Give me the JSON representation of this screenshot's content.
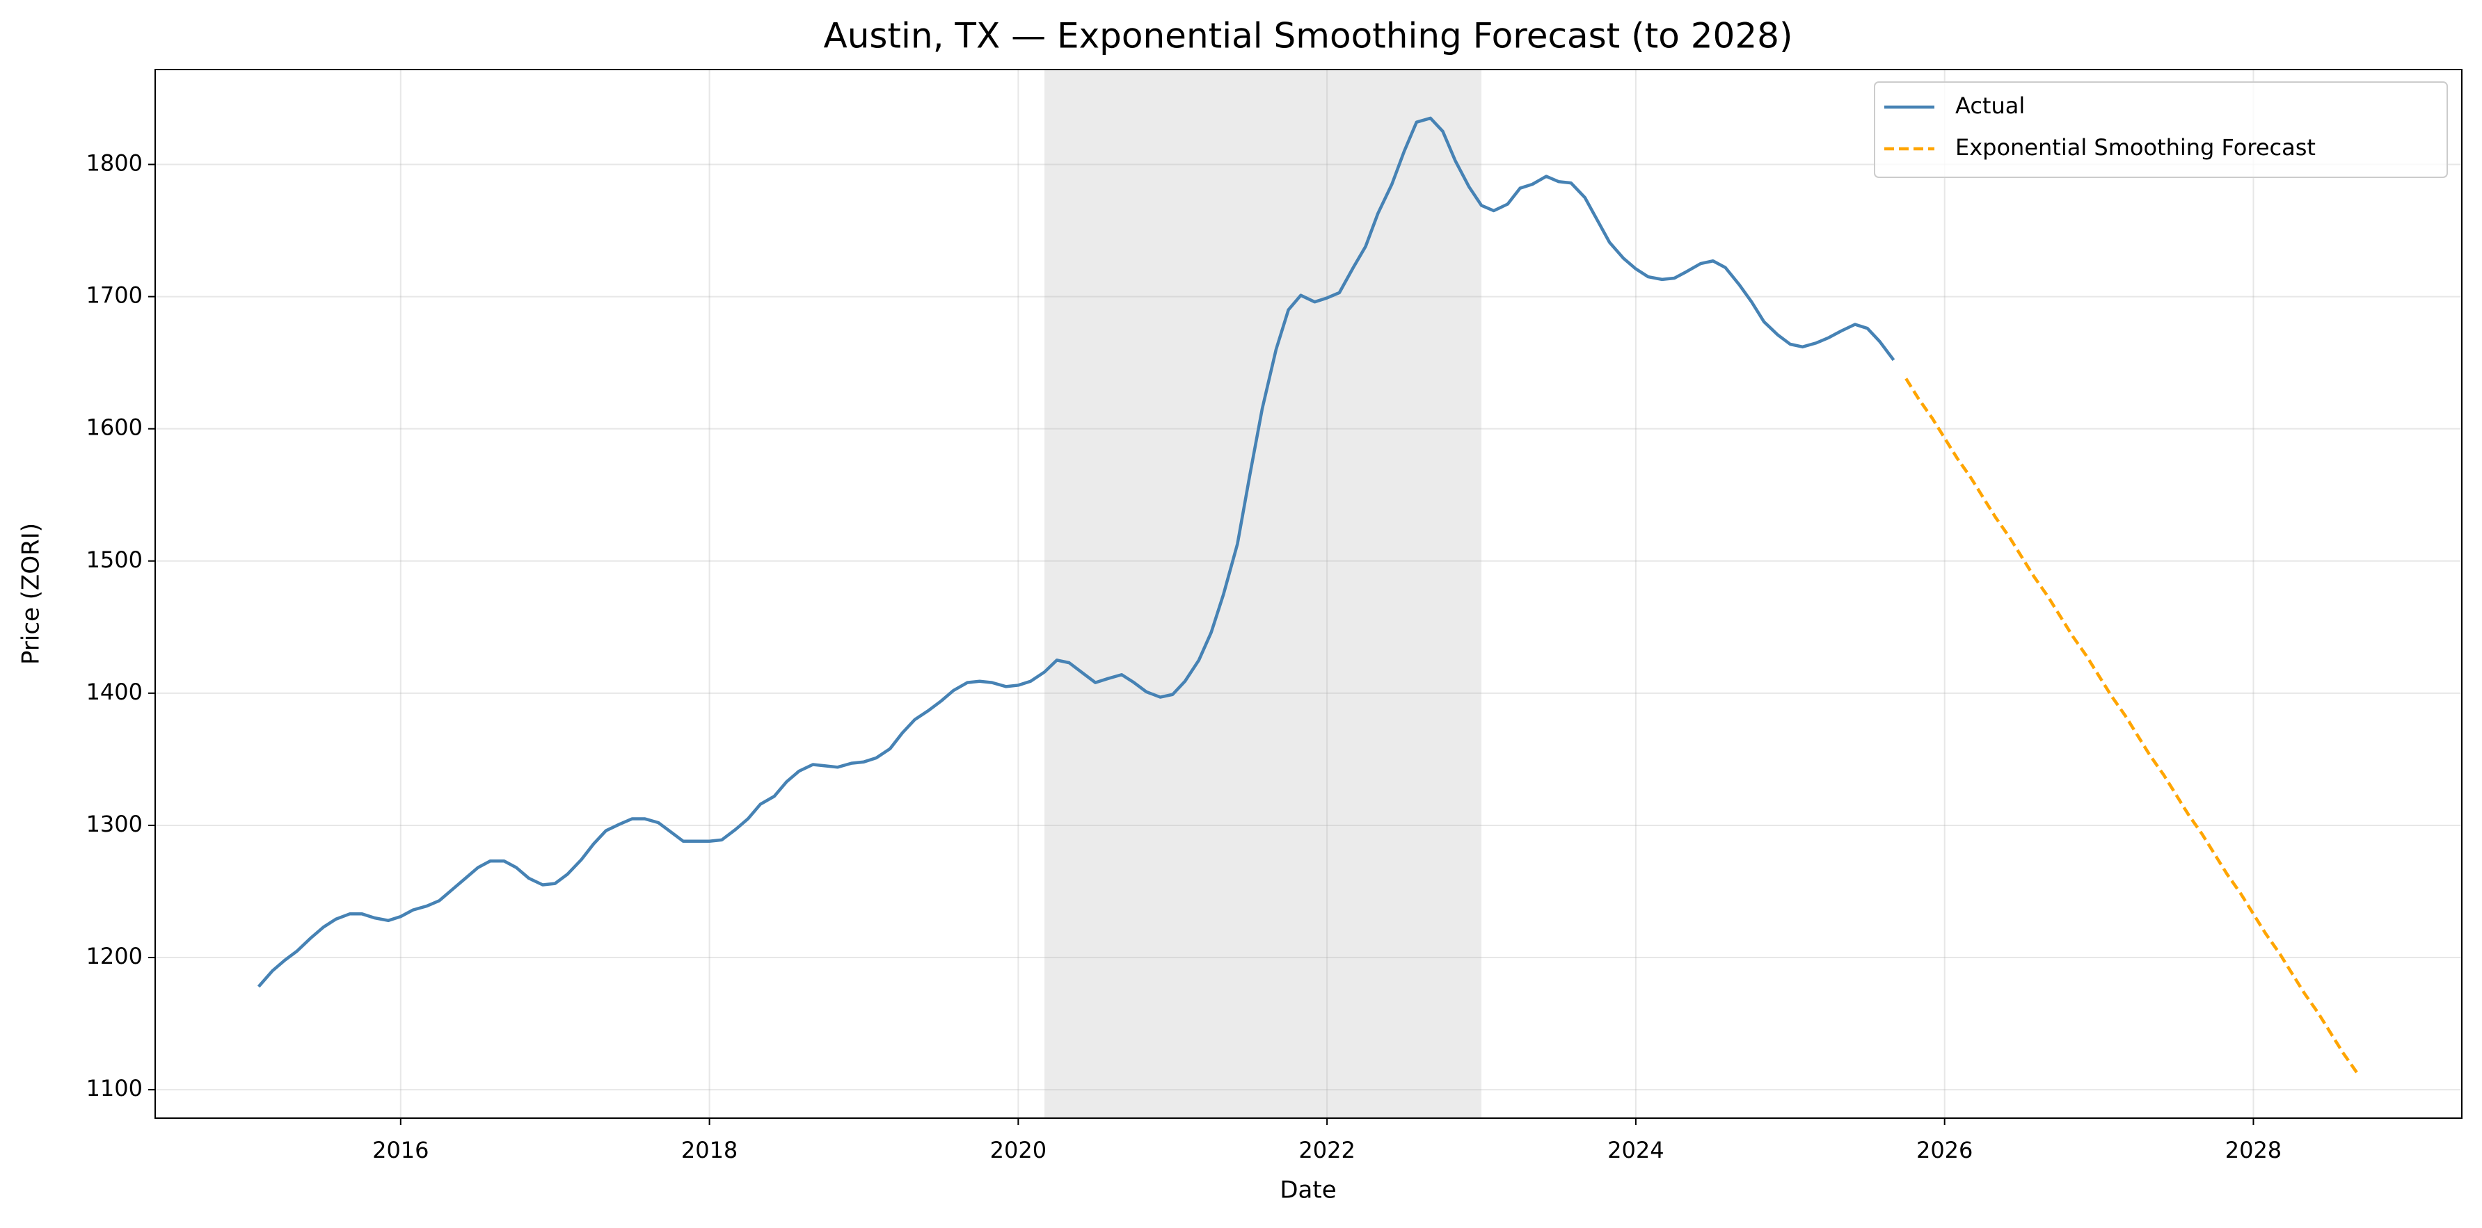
{
  "chart_data": {
    "type": "line",
    "title": "Austin, TX — Exponential Smoothing Forecast (to 2028)",
    "x_label": "Date",
    "y_label": "Price (ZORI)",
    "xlim": [
      2014.41,
      2029.35
    ],
    "ylim": [
      1078.5,
      1871.8
    ],
    "xticks": [
      2016,
      2018,
      2020,
      2022,
      2024,
      2026,
      2028
    ],
    "yticks": [
      1100,
      1200,
      1300,
      1400,
      1500,
      1600,
      1700,
      1800
    ],
    "grid": true,
    "legend": "upper right",
    "shaded_span": [
      2020.17,
      2023.0
    ],
    "shaded_color": "#d3d3d3",
    "series": [
      {
        "name": "Actual",
        "color": "#4682b4",
        "dash": false,
        "x": [
          2015.08,
          2015.17,
          2015.25,
          2015.33,
          2015.42,
          2015.5,
          2015.58,
          2015.67,
          2015.75,
          2015.83,
          2015.92,
          2016,
          2016.08,
          2016.17,
          2016.25,
          2016.33,
          2016.42,
          2016.5,
          2016.58,
          2016.67,
          2016.75,
          2016.83,
          2016.92,
          2017,
          2017.08,
          2017.17,
          2017.25,
          2017.33,
          2017.42,
          2017.5,
          2017.58,
          2017.67,
          2017.75,
          2017.83,
          2017.92,
          2018,
          2018.08,
          2018.17,
          2018.25,
          2018.33,
          2018.42,
          2018.5,
          2018.58,
          2018.67,
          2018.75,
          2018.83,
          2018.92,
          2019,
          2019.08,
          2019.17,
          2019.25,
          2019.33,
          2019.42,
          2019.5,
          2019.58,
          2019.67,
          2019.75,
          2019.83,
          2019.92,
          2020,
          2020.08,
          2020.17,
          2020.25,
          2020.33,
          2020.42,
          2020.5,
          2020.58,
          2020.67,
          2020.75,
          2020.83,
          2020.92,
          2021,
          2021.08,
          2021.17,
          2021.25,
          2021.33,
          2021.42,
          2021.5,
          2021.58,
          2021.67,
          2021.75,
          2021.83,
          2021.92,
          2022,
          2022.08,
          2022.17,
          2022.25,
          2022.33,
          2022.42,
          2022.5,
          2022.58,
          2022.67,
          2022.75,
          2022.83,
          2022.92,
          2023,
          2023.08,
          2023.17,
          2023.25,
          2023.33,
          2023.42,
          2023.5,
          2023.58,
          2023.67,
          2023.75,
          2023.83,
          2023.92,
          2024,
          2024.08,
          2024.17,
          2024.25,
          2024.33,
          2024.42,
          2024.5,
          2024.58,
          2024.67,
          2024.75,
          2024.83,
          2024.92,
          2025,
          2025.08,
          2025.17,
          2025.25,
          2025.33,
          2025.42,
          2025.5,
          2025.58,
          2025.67
        ],
        "values": [
          1178,
          1190,
          1198,
          1205,
          1215,
          1223,
          1229,
          1233,
          1233,
          1230,
          1228,
          1231,
          1236,
          1239,
          1243,
          1251,
          1260,
          1268,
          1273,
          1273,
          1268,
          1260,
          1255,
          1256,
          1263,
          1274,
          1286,
          1296,
          1301,
          1305,
          1305,
          1302,
          1295,
          1288,
          1288,
          1288,
          1289,
          1297,
          1305,
          1316,
          1322,
          1333,
          1341,
          1346,
          1345,
          1344,
          1347,
          1348,
          1351,
          1358,
          1370,
          1380,
          1387,
          1394,
          1402,
          1408,
          1409,
          1408,
          1405,
          1406,
          1409,
          1416,
          1425,
          1423,
          1415,
          1408,
          1411,
          1414,
          1408,
          1401,
          1397,
          1399,
          1409,
          1425,
          1446,
          1475,
          1513,
          1565,
          1615,
          1660,
          1690,
          1701,
          1696,
          1699,
          1703,
          1722,
          1738,
          1763,
          1785,
          1810,
          1832,
          1835,
          1825,
          1803,
          1783,
          1769,
          1765,
          1770,
          1782,
          1785,
          1791,
          1787,
          1786,
          1775,
          1758,
          1741,
          1729,
          1721,
          1715,
          1713,
          1714,
          1719,
          1725,
          1727,
          1722,
          1709,
          1696,
          1681,
          1671,
          1664,
          1662,
          1665,
          1669,
          1674,
          1679,
          1676,
          1666,
          1652
        ]
      },
      {
        "name": "Exponential Smoothing Forecast",
        "color": "#ffa500",
        "dash": true,
        "x": [
          2025.75,
          2025.83,
          2025.92,
          2026,
          2026.08,
          2026.17,
          2026.25,
          2026.33,
          2026.42,
          2026.5,
          2026.58,
          2026.67,
          2026.75,
          2026.83,
          2026.92,
          2027,
          2027.08,
          2027.17,
          2027.25,
          2027.33,
          2027.42,
          2027.5,
          2027.58,
          2027.67,
          2027.75,
          2027.83,
          2027.92,
          2028,
          2028.08,
          2028.17,
          2028.25,
          2028.33,
          2028.42,
          2028.5,
          2028.58,
          2028.67
        ],
        "values": [
          1638,
          1623,
          1608,
          1593,
          1578,
          1563,
          1548,
          1533,
          1518,
          1503,
          1488,
          1473,
          1458,
          1443,
          1428,
          1413,
          1398,
          1383,
          1368,
          1353,
          1338,
          1323,
          1308,
          1293,
          1278,
          1263,
          1248,
          1233,
          1218,
          1203,
          1188,
          1173,
          1158,
          1143,
          1128,
          1113
        ]
      }
    ]
  }
}
